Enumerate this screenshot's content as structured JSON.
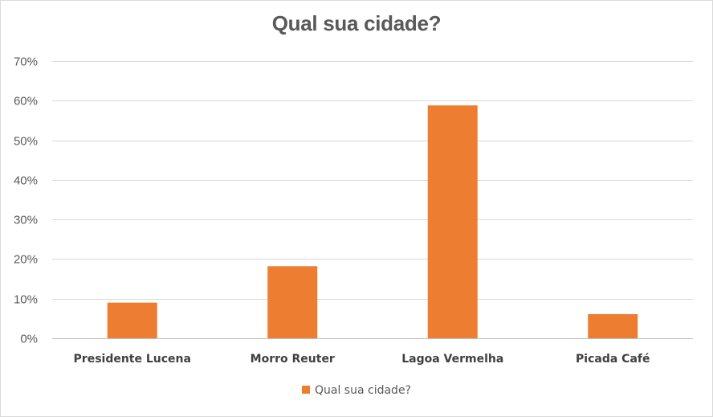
{
  "chart_data": {
    "type": "bar",
    "title": "Qual sua cidade?",
    "categories": [
      "Presidente Lucena",
      "Morro Reuter",
      "Lagoa Vermelha",
      "Picada Café"
    ],
    "series": [
      {
        "name": "Qual sua cidade?",
        "values": [
          9,
          18.2,
          58.8,
          6.1
        ],
        "color": "#ED7D31"
      }
    ],
    "ylim": [
      0,
      70
    ],
    "yticks": [
      0,
      10,
      20,
      30,
      40,
      50,
      60,
      70
    ],
    "ytick_labels": [
      "0%",
      "10%",
      "20%",
      "30%",
      "40%",
      "50%",
      "60%",
      "70%"
    ],
    "grid": true,
    "legend_position": "bottom",
    "xlabel": "",
    "ylabel": ""
  }
}
